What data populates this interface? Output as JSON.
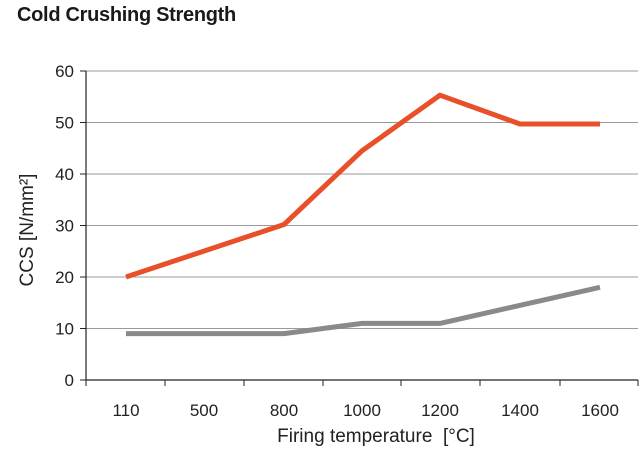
{
  "chart_data": {
    "type": "line",
    "title": "Cold Crushing Strength",
    "xlabel": "Firing temperature  [°C]",
    "ylabel": "CCS [N/mm²]",
    "categories": [
      "110",
      "500",
      "800",
      "1000",
      "1200",
      "1400",
      "1600"
    ],
    "ylim": [
      0,
      60
    ],
    "yticks": [
      0,
      10,
      20,
      30,
      40,
      50,
      60
    ],
    "grid": "horizontal",
    "series": [
      {
        "color": "#e8502a",
        "points": [
          {
            "x": "110",
            "y": 20
          },
          {
            "x": "800",
            "y": 30.2
          },
          {
            "x": "1000",
            "y": 44.5
          },
          {
            "x": "1200",
            "y": 55.3
          },
          {
            "x": "1400",
            "y": 49.7
          },
          {
            "x": "1600",
            "y": 49.7
          }
        ]
      },
      {
        "color": "#8a8a8a",
        "points": [
          {
            "x": "110",
            "y": 9
          },
          {
            "x": "800",
            "y": 9
          },
          {
            "x": "1000",
            "y": 11
          },
          {
            "x": "1200",
            "y": 11
          },
          {
            "x": "1600",
            "y": 18
          }
        ]
      }
    ]
  }
}
